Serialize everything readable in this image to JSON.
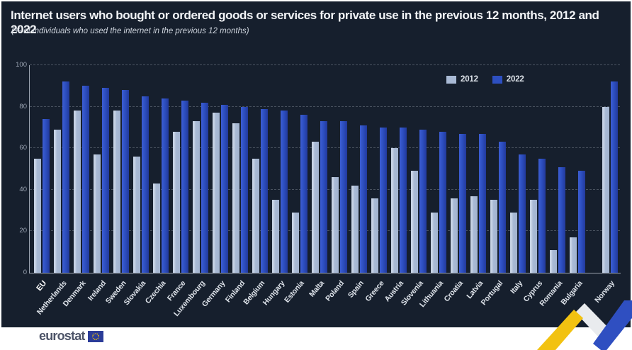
{
  "header": {
    "title": "Internet users who bought or ordered goods or services for private use in the previous 12 months, 2012 and 2022",
    "subtitle": "(% of individuals who used the internet in the previous 12 months)"
  },
  "chart_data": {
    "type": "bar",
    "title": "Internet users who bought or ordered goods or services for private use in the previous 12 months, 2012 and 2022",
    "subtitle": "(% of individuals who used the internet in the previous 12 months)",
    "categories": [
      "EU",
      "Netherlands",
      "Denmark",
      "Ireland",
      "Sweden",
      "Slovakia",
      "Czechia",
      "France",
      "Luxembourg",
      "Germany",
      "Finland",
      "Belgium",
      "Hungary",
      "Estonia",
      "Malta",
      "Poland",
      "Spain",
      "Greece",
      "Austria",
      "Slovenia",
      "Lithuania",
      "Croatia",
      "Latvia",
      "Portugal",
      "Italy",
      "Cyprus",
      "Romania",
      "Bulgaria",
      "Norway"
    ],
    "series": [
      {
        "name": "2012",
        "color": "#a9bad5",
        "values": [
          55,
          69,
          78,
          57,
          78,
          56,
          43,
          68,
          73,
          77,
          72,
          55,
          35,
          29,
          63,
          46,
          42,
          36,
          60,
          49,
          29,
          36,
          37,
          35,
          29,
          35,
          11,
          17,
          80
        ]
      },
      {
        "name": "2022",
        "color": "#2d4fc0",
        "values": [
          74,
          92,
          90,
          89,
          88,
          85,
          84,
          83,
          82,
          81,
          80,
          79,
          78,
          76,
          73,
          73,
          71,
          70,
          70,
          69,
          68,
          67,
          67,
          63,
          57,
          55,
          51,
          49,
          92
        ]
      }
    ],
    "xlabel": "",
    "ylabel": "",
    "ylim": [
      0,
      100
    ],
    "yticks": [
      0,
      20,
      40,
      60,
      80,
      100
    ],
    "grid": "horizontal-dashed",
    "legend_position": "top-right",
    "emphasis_category": "EU",
    "gap_before_category": "Norway",
    "background_color": "#161f2d"
  },
  "legend": {
    "items": [
      {
        "label": "2012",
        "color": "#a9bad5"
      },
      {
        "label": "2022",
        "color": "#2d4fc0"
      }
    ]
  },
  "footer": {
    "brand": "eurostat"
  },
  "colors": {
    "panel_bg": "#161f2d",
    "bar_2012": "#a9bad5",
    "bar_2022": "#2d4fc0",
    "gridline": "#49525f",
    "axis": "#9aa2ae",
    "ribbon_yellow": "#f2c211",
    "ribbon_white": "#e9ebee",
    "ribbon_blue": "#2f4fc1",
    "flag_blue": "#2b3c98"
  }
}
